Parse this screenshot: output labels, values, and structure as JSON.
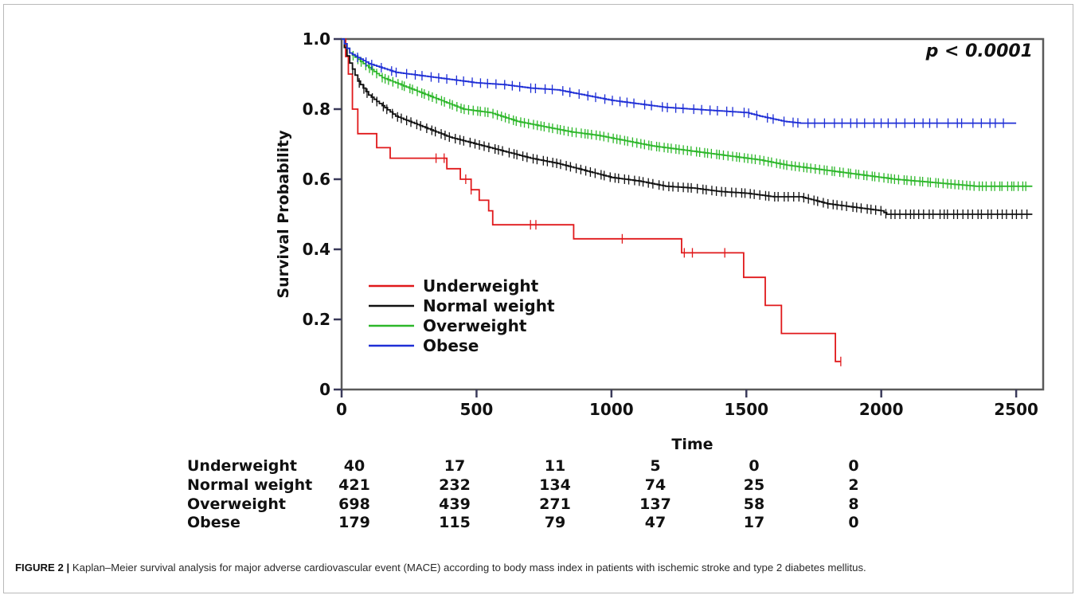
{
  "caption": {
    "label": "FIGURE 2 |",
    "text": "Kaplan–Meier survival analysis for major adverse cardiovascular event (MACE) according to body mass index in patients with ischemic stroke and type 2 diabetes mellitus."
  },
  "chart_data": {
    "type": "line",
    "title": "",
    "xlabel": "Time",
    "ylabel": "Survival Probability",
    "xlim": [
      0,
      2600
    ],
    "ylim": [
      0,
      1.0
    ],
    "x_ticks": [
      0,
      500,
      1000,
      1500,
      2000,
      2500
    ],
    "y_ticks": [
      0,
      0.2,
      0.4,
      0.6,
      0.8,
      1.0
    ],
    "y_tick_labels": [
      "0",
      "0.2",
      "0.4",
      "0.6",
      "0.8",
      "1.0"
    ],
    "grid": false,
    "legend_position": "bottom-left",
    "annotation": "p < 0.0001",
    "series": [
      {
        "name": "Underweight",
        "color": "#e0191b",
        "steps": [
          [
            0,
            1.0
          ],
          [
            15,
            0.95
          ],
          [
            25,
            0.9
          ],
          [
            40,
            0.8
          ],
          [
            60,
            0.73
          ],
          [
            110,
            0.73
          ],
          [
            130,
            0.69
          ],
          [
            180,
            0.66
          ],
          [
            360,
            0.66
          ],
          [
            390,
            0.63
          ],
          [
            440,
            0.6
          ],
          [
            480,
            0.57
          ],
          [
            510,
            0.54
          ],
          [
            545,
            0.51
          ],
          [
            560,
            0.47
          ],
          [
            850,
            0.47
          ],
          [
            860,
            0.43
          ],
          [
            1255,
            0.43
          ],
          [
            1260,
            0.39
          ],
          [
            1480,
            0.39
          ],
          [
            1490,
            0.32
          ],
          [
            1560,
            0.32
          ],
          [
            1570,
            0.24
          ],
          [
            1620,
            0.24
          ],
          [
            1630,
            0.16
          ],
          [
            1820,
            0.16
          ],
          [
            1830,
            0.08
          ],
          [
            1850,
            0.08
          ]
        ],
        "censor_times": [
          350,
          380,
          460,
          480,
          700,
          720,
          1040,
          1270,
          1300,
          1420,
          1850
        ]
      },
      {
        "name": "Normal weight",
        "color": "#111111",
        "points": [
          [
            0,
            1.0
          ],
          [
            25,
            0.94
          ],
          [
            60,
            0.88
          ],
          [
            100,
            0.84
          ],
          [
            150,
            0.81
          ],
          [
            200,
            0.78
          ],
          [
            300,
            0.75
          ],
          [
            400,
            0.72
          ],
          [
            500,
            0.7
          ],
          [
            600,
            0.68
          ],
          [
            700,
            0.66
          ],
          [
            800,
            0.645
          ],
          [
            900,
            0.625
          ],
          [
            1000,
            0.605
          ],
          [
            1100,
            0.595
          ],
          [
            1200,
            0.58
          ],
          [
            1300,
            0.575
          ],
          [
            1400,
            0.565
          ],
          [
            1500,
            0.56
          ],
          [
            1600,
            0.55
          ],
          [
            1700,
            0.55
          ],
          [
            1800,
            0.53
          ],
          [
            1900,
            0.52
          ],
          [
            1950,
            0.515
          ],
          [
            2000,
            0.51
          ],
          [
            2020,
            0.5
          ],
          [
            2560,
            0.5
          ]
        ],
        "censor_range": [
          40,
          2550
        ],
        "censor_count": 140
      },
      {
        "name": "Overweight",
        "color": "#2db72a",
        "points": [
          [
            0,
            1.0
          ],
          [
            30,
            0.96
          ],
          [
            80,
            0.93
          ],
          [
            150,
            0.89
          ],
          [
            250,
            0.86
          ],
          [
            350,
            0.83
          ],
          [
            450,
            0.8
          ],
          [
            550,
            0.79
          ],
          [
            650,
            0.765
          ],
          [
            750,
            0.75
          ],
          [
            850,
            0.735
          ],
          [
            950,
            0.725
          ],
          [
            1050,
            0.71
          ],
          [
            1150,
            0.695
          ],
          [
            1250,
            0.685
          ],
          [
            1350,
            0.675
          ],
          [
            1450,
            0.665
          ],
          [
            1550,
            0.655
          ],
          [
            1650,
            0.64
          ],
          [
            1750,
            0.63
          ],
          [
            1850,
            0.62
          ],
          [
            1950,
            0.61
          ],
          [
            2050,
            0.6
          ],
          [
            2200,
            0.59
          ],
          [
            2350,
            0.58
          ],
          [
            2560,
            0.58
          ]
        ],
        "censor_range": [
          40,
          2550
        ],
        "censor_count": 170
      },
      {
        "name": "Obese",
        "color": "#1f2fd6",
        "points": [
          [
            0,
            1.0
          ],
          [
            30,
            0.96
          ],
          [
            100,
            0.93
          ],
          [
            200,
            0.905
          ],
          [
            300,
            0.895
          ],
          [
            400,
            0.885
          ],
          [
            500,
            0.875
          ],
          [
            600,
            0.87
          ],
          [
            700,
            0.86
          ],
          [
            800,
            0.855
          ],
          [
            900,
            0.84
          ],
          [
            1000,
            0.825
          ],
          [
            1100,
            0.815
          ],
          [
            1200,
            0.805
          ],
          [
            1300,
            0.8
          ],
          [
            1400,
            0.795
          ],
          [
            1500,
            0.79
          ],
          [
            1550,
            0.78
          ],
          [
            1640,
            0.765
          ],
          [
            1700,
            0.76
          ],
          [
            2500,
            0.76
          ]
        ],
        "censor_range": [
          50,
          2480
        ],
        "censor_count": 80
      }
    ],
    "risk_table": {
      "times": [
        0,
        500,
        1000,
        1500,
        2000,
        2500
      ],
      "rows": [
        {
          "label": "Underweight",
          "counts": [
            "40",
            "17",
            "11",
            "5",
            "0",
            "0"
          ]
        },
        {
          "label": "Normal weight",
          "counts": [
            "421",
            "232",
            "134",
            "74",
            "25",
            "2"
          ]
        },
        {
          "label": "Overweight",
          "counts": [
            "698",
            "439",
            "271",
            "137",
            "58",
            "8"
          ]
        },
        {
          "label": "Obese",
          "counts": [
            "179",
            "115",
            "79",
            "47",
            "17",
            "0"
          ]
        }
      ]
    }
  }
}
